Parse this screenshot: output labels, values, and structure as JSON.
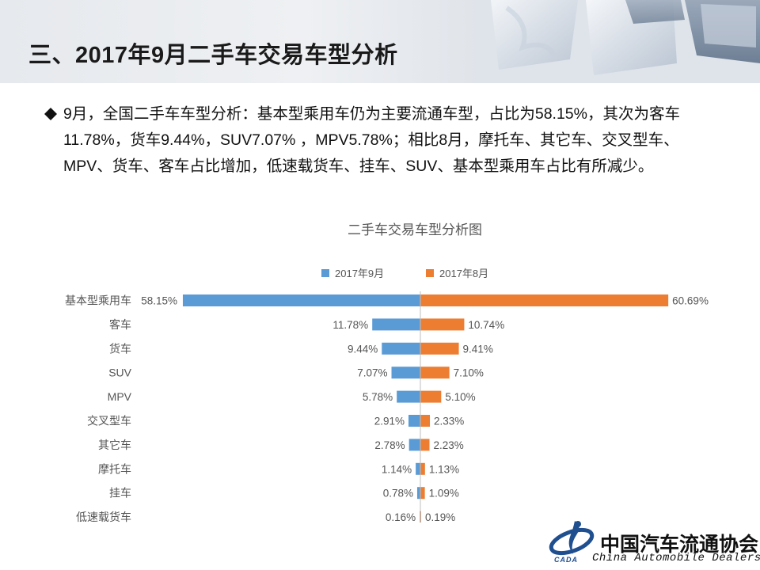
{
  "header": {
    "title": "三、2017年9月二手车交易车型分析"
  },
  "summary": {
    "text": "9月，全国二手车车型分析：基本型乘用车仍为主要流通车型，占比为58.15%，其次为客车11.78%，货车9.44%，SUV7.07% ，MPV5.78%；相比8月，摩托车、其它车、交叉型车、 MPV、货车、客车占比增加，低速载货车、挂车、SUV、基本型乘用车占比有所减少。"
  },
  "chart_data": {
    "type": "bar",
    "title": "二手车交易车型分析图",
    "orientation": "horizontal-butterfly",
    "legend_position": "top",
    "categories": [
      "基本型乘用车",
      "客车",
      "货车",
      "SUV",
      "MPV",
      "交叉型车",
      "其它车",
      "摩托车",
      "挂车",
      "低速载货车"
    ],
    "series": [
      {
        "name": "2017年9月",
        "color": "#5b9bd5",
        "values": [
          58.15,
          11.78,
          9.44,
          7.07,
          5.78,
          2.91,
          2.78,
          1.14,
          0.78,
          0.16
        ],
        "labels": [
          "58.15%",
          "11.78%",
          "9.44%",
          "7.07%",
          "5.78%",
          "2.91%",
          "2.78%",
          "1.14%",
          "0.78%",
          "0.16%"
        ]
      },
      {
        "name": "2017年8月",
        "color": "#ed7d31",
        "values": [
          60.69,
          10.74,
          9.41,
          7.1,
          5.1,
          2.33,
          2.23,
          1.13,
          1.09,
          0.19
        ],
        "labels": [
          "60.69%",
          "10.74%",
          "9.41%",
          "7.10%",
          "5.10%",
          "2.33%",
          "2.23%",
          "1.13%",
          "1.09%",
          "0.19%"
        ]
      }
    ],
    "grid": false,
    "unit": "%"
  },
  "footer": {
    "org_cn": "中国汽车流通协会",
    "org_en": "China  Automobile Dealers",
    "org_abbr": "CADA"
  },
  "colors": {
    "september": "#5b9bd5",
    "august": "#ed7d31"
  }
}
